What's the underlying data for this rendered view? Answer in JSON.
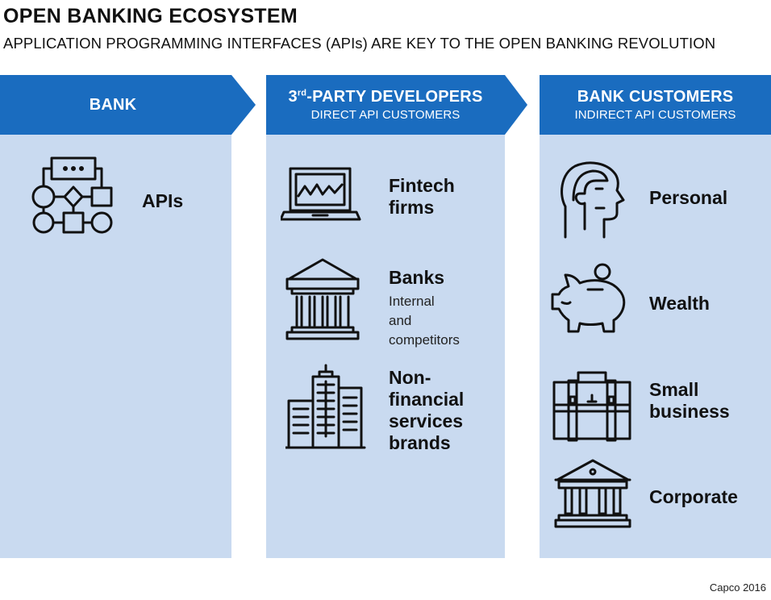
{
  "title": "OPEN BANKING ECOSYSTEM",
  "subtitle": "APPLICATION PROGRAMMING INTERFACES (APIs) ARE KEY TO THE OPEN BANKING REVOLUTION",
  "columns": [
    {
      "header_title": "BANK",
      "items": [
        {
          "icon": "flowchart-icon",
          "label": "APIs"
        }
      ]
    },
    {
      "header_title_prefix": "3",
      "header_title_sup": "rd",
      "header_title_rest": "-PARTY DEVELOPERS",
      "header_subtitle": "DIRECT API CUSTOMERS",
      "items": [
        {
          "icon": "laptop-chart-icon",
          "label": "Fintech firms",
          "label_lines": [
            "Fintech",
            "firms"
          ]
        },
        {
          "icon": "bank-building-icon",
          "label": "Banks",
          "sublabel_lines": [
            "Internal and",
            "competitors"
          ]
        },
        {
          "icon": "skyscrapers-icon",
          "label": "Non-financial services brands",
          "label_lines": [
            "Non-",
            "financial",
            "services",
            "brands"
          ]
        }
      ]
    },
    {
      "header_title": "BANK CUSTOMERS",
      "header_subtitle": "INDIRECT API CUSTOMERS",
      "items": [
        {
          "icon": "person-head-icon",
          "label": "Personal"
        },
        {
          "icon": "piggy-bank-icon",
          "label": "Wealth"
        },
        {
          "icon": "briefcase-icon",
          "label": "Small business",
          "label_lines": [
            "Small",
            "business"
          ]
        },
        {
          "icon": "corporate-building-icon",
          "label": "Corporate"
        }
      ]
    }
  ],
  "credit": "Capco 2016",
  "colors": {
    "header_blue": "#1a6cbf",
    "panel_blue": "#c9daf0",
    "text": "#111111"
  }
}
